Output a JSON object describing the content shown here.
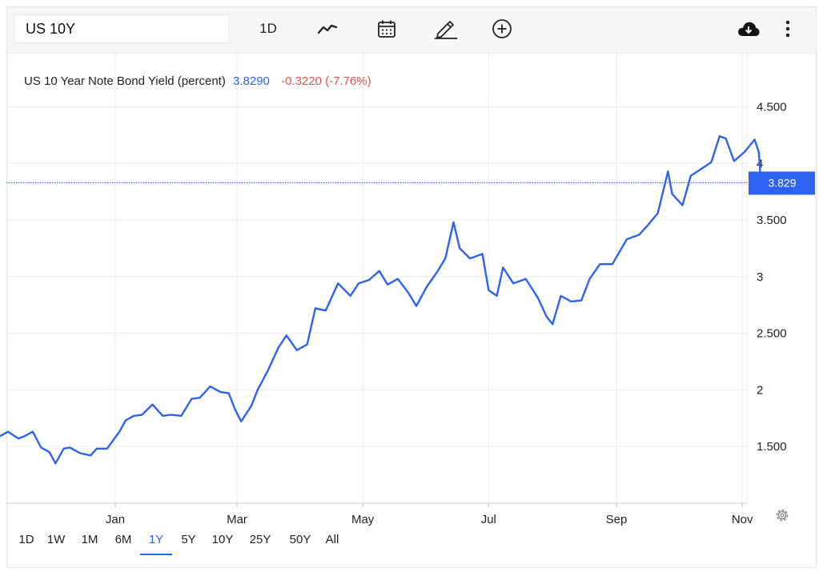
{
  "toolbar": {
    "symbol": "US 10Y",
    "interval_label": "1D",
    "icons": [
      "line-chart-icon",
      "calendar-icon",
      "pencil-icon",
      "add-circle-icon",
      "cloud-download-icon",
      "more-vert-icon"
    ]
  },
  "legend": {
    "title": "US 10 Year Note Bond Yield (percent)",
    "value": "3.8290",
    "change": "-0.3220 (-7.76%)"
  },
  "last_price_tag": "3.829",
  "ranges": [
    "1D",
    "1W",
    "1M",
    "6M",
    "1Y",
    "5Y",
    "10Y",
    "25Y",
    "50Y",
    "All"
  ],
  "active_range": "1Y",
  "colors": {
    "line": "#2e62f0",
    "change_negative": "#e05252",
    "value": "#2e62f0",
    "grid": "#ececec"
  },
  "chart_data": {
    "type": "line",
    "title": "US 10 Year Note Bond Yield (percent)",
    "x_tick_labels": [
      "Jan",
      "Mar",
      "May",
      "Jul",
      "Sep",
      "Nov"
    ],
    "y_tick_labels": [
      "1.500",
      "2",
      "2.500",
      "3",
      "3.500",
      "4",
      "4.500"
    ],
    "ylim": [
      1.0,
      5.0
    ],
    "grid": true,
    "last_value": 3.829,
    "series": [
      {
        "x": [
          "2021-11-05",
          "2021-11-10",
          "2021-11-15",
          "2021-11-18",
          "2021-11-22",
          "2021-11-26",
          "2021-11-30",
          "2021-12-03",
          "2021-12-07",
          "2021-12-10",
          "2021-12-15",
          "2021-12-20",
          "2021-12-23",
          "2021-12-28",
          "2022-01-03",
          "2022-01-06",
          "2022-01-10",
          "2022-01-14",
          "2022-01-19",
          "2022-01-24",
          "2022-01-28",
          "2022-02-02",
          "2022-02-07",
          "2022-02-11",
          "2022-02-16",
          "2022-02-21",
          "2022-02-25",
          "2022-02-28",
          "2022-03-03",
          "2022-03-08",
          "2022-03-11",
          "2022-03-16",
          "2022-03-21",
          "2022-03-25",
          "2022-03-30",
          "2022-04-04",
          "2022-04-08",
          "2022-04-13",
          "2022-04-19",
          "2022-04-25",
          "2022-04-29",
          "2022-05-04",
          "2022-05-09",
          "2022-05-13",
          "2022-05-18",
          "2022-05-23",
          "2022-05-27",
          "2022-06-01",
          "2022-06-06",
          "2022-06-10",
          "2022-06-14",
          "2022-06-17",
          "2022-06-22",
          "2022-06-28",
          "2022-07-01",
          "2022-07-05",
          "2022-07-08",
          "2022-07-13",
          "2022-07-19",
          "2022-07-25",
          "2022-07-29",
          "2022-08-01",
          "2022-08-05",
          "2022-08-10",
          "2022-08-15",
          "2022-08-19",
          "2022-08-24",
          "2022-08-30",
          "2022-09-06",
          "2022-09-12",
          "2022-09-16",
          "2022-09-21",
          "2022-09-26",
          "2022-09-28",
          "2022-10-03",
          "2022-10-07",
          "2022-10-12",
          "2022-10-17",
          "2022-10-21",
          "2022-10-24",
          "2022-10-28",
          "2022-11-02",
          "2022-11-07",
          "2022-11-09",
          "2022-11-10"
        ],
        "y": [
          1.58,
          1.63,
          1.57,
          1.59,
          1.63,
          1.49,
          1.45,
          1.35,
          1.48,
          1.49,
          1.44,
          1.42,
          1.48,
          1.48,
          1.63,
          1.73,
          1.77,
          1.78,
          1.87,
          1.77,
          1.78,
          1.77,
          1.92,
          1.93,
          2.03,
          1.98,
          1.97,
          1.83,
          1.72,
          1.86,
          2.0,
          2.17,
          2.37,
          2.48,
          2.35,
          2.4,
          2.72,
          2.7,
          2.94,
          2.83,
          2.94,
          2.97,
          3.05,
          2.93,
          2.98,
          2.86,
          2.74,
          2.91,
          3.04,
          3.16,
          3.48,
          3.25,
          3.16,
          3.2,
          2.88,
          2.83,
          3.08,
          2.94,
          2.98,
          2.81,
          2.65,
          2.58,
          2.83,
          2.78,
          2.79,
          2.98,
          3.11,
          3.11,
          3.33,
          3.37,
          3.45,
          3.56,
          3.93,
          3.73,
          3.63,
          3.89,
          3.95,
          4.01,
          4.24,
          4.22,
          4.02,
          4.1,
          4.21,
          4.1,
          3.83
        ]
      }
    ]
  }
}
